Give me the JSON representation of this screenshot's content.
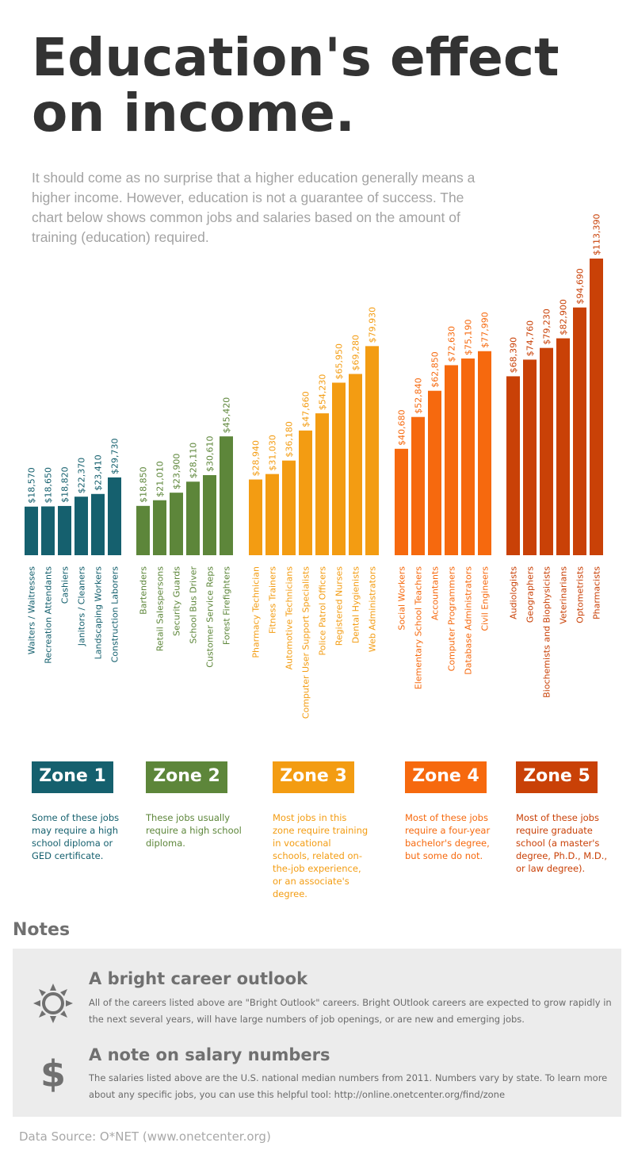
{
  "header": {
    "title_line1": "Education's effect",
    "title_line2": "on income.",
    "intro": "It should come as no surprise that a higher education generally means a higher income.  However, education is not a guarantee of success.  The chart below shows common jobs and salaries based on the amount of training (education) required."
  },
  "chart_data": {
    "type": "bar",
    "title": "",
    "xlabel": "",
    "ylabel": "",
    "ylim": [
      0,
      120000
    ],
    "grid": false,
    "legend": "none",
    "series": [
      {
        "name": "Zone 1",
        "color": "#15606e",
        "categories": [
          "Waiters / Waitresses",
          "Recreation Attendants",
          "Cashiers",
          "Janitors / Cleaners",
          "Landscaping Workers",
          "Construction Laborers"
        ],
        "values": [
          18570,
          18650,
          18820,
          22370,
          23410,
          29730
        ],
        "labels": [
          "$18,570",
          "$18,650",
          "$18,820",
          "$22,370",
          "$23,410",
          "$29,730"
        ]
      },
      {
        "name": "Zone 2",
        "color": "#5d863a",
        "categories": [
          "Bartenders",
          "Retail Salespersons",
          "Security Guards",
          "School Bus Driver",
          "Customer Service Reps",
          "Forest Firefighters"
        ],
        "values": [
          18850,
          21010,
          23900,
          28110,
          30610,
          45420
        ],
        "labels": [
          "$18,850",
          "$21,010",
          "$23,900",
          "$28,110",
          "$30,610",
          "$45,420"
        ]
      },
      {
        "name": "Zone 3",
        "color": "#f39c12",
        "categories": [
          "Pharmacy Technician",
          "Fitness Trainers",
          "Automotive Technicians",
          "Computer User Support Specialists",
          "Police Patrol Officers",
          "Registered Nurses",
          "Dental Hygienists",
          "Web Administrators"
        ],
        "values": [
          28940,
          31030,
          36180,
          47660,
          54230,
          65950,
          69280,
          79930
        ],
        "labels": [
          "$28,940",
          "$31,030",
          "$36,180",
          "$47,660",
          "$54,230",
          "$65,950",
          "$69,280",
          "$79,930"
        ]
      },
      {
        "name": "Zone 4",
        "color": "#f6690e",
        "categories": [
          "Social Workers",
          "Elementary School Teachers",
          "Accountants",
          "Computer Programmers",
          "Database Administrators",
          "Civil Engineers"
        ],
        "values": [
          40680,
          52840,
          62850,
          72630,
          75190,
          77990
        ],
        "labels": [
          "$40,680",
          "$52,840",
          "$62,850",
          "$72,630",
          "$75,190",
          "$77,990"
        ]
      },
      {
        "name": "Zone 5",
        "color": "#c94107",
        "categories": [
          "Audiologists",
          "Geographers",
          "Biochemists and Biophysicists",
          "Veterinarians",
          "Optometrists",
          "Pharmacists"
        ],
        "values": [
          68390,
          74760,
          79230,
          82900,
          94690,
          113390
        ],
        "labels": [
          "$68,390",
          "$74,760",
          "$79,230",
          "$82,900",
          "$94,690",
          "$113,390"
        ]
      }
    ]
  },
  "zones": [
    {
      "label": "Zone 1",
      "color": "#15606e",
      "desc": "Some of these jobs may require a high school diploma or GED certificate."
    },
    {
      "label": "Zone 2",
      "color": "#5d863a",
      "desc": "These jobs usually require a high school diploma."
    },
    {
      "label": "Zone 3",
      "color": "#f39c12",
      "desc": "Most jobs in this zone require training in vocational schools, related on-the-job experience, or an associate's degree."
    },
    {
      "label": "Zone 4",
      "color": "#f6690e",
      "desc": "Most of these jobs require a four-year bachelor's degree, but some do not."
    },
    {
      "label": "Zone 5",
      "color": "#c94107",
      "desc": "Most of these jobs require graduate school (a master's degree, Ph.D., M.D., or law degree)."
    }
  ],
  "notes": {
    "heading": "Notes",
    "items": [
      {
        "icon": "sun-icon",
        "title": "A bright career outlook",
        "text": "All of the careers listed above are \"Bright Outlook\" careers. Bright OUtlook careers are expected to grow rapidly in the next several years, will have large numbers of job openings, or are new and emerging jobs."
      },
      {
        "icon": "dollar-icon",
        "glyph": "$",
        "title": "A note on salary numbers",
        "text": "The salaries listed above are the U.S. national median numbers from 2011. Numbers vary by state. To learn more about any specific jobs, you can use this helpful tool: http://online.onetcenter.org/find/zone"
      }
    ]
  },
  "footer": {
    "source": "Data Source: O*NET (www.onetcenter.org)"
  }
}
